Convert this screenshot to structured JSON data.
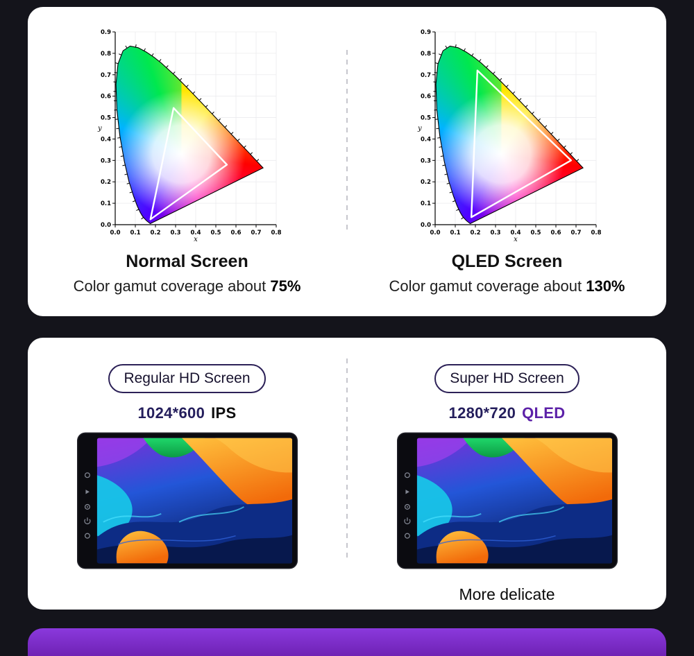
{
  "theme": {
    "page_bg": "#14141b",
    "card_bg": "#ffffff",
    "accent_purple": "#7d2fc6",
    "pill_border": "#2c2157",
    "qled_text_color": "#5c21a8",
    "divider_color": "#c6c6cd"
  },
  "gamut_section": {
    "left": {
      "title": "Normal Screen",
      "subtitle_prefix": "Color gamut coverage about ",
      "coverage": "75%"
    },
    "right": {
      "title": "QLED Screen",
      "subtitle_prefix": "Color gamut coverage about ",
      "coverage": "130%"
    }
  },
  "screen_section": {
    "left": {
      "badge": "Regular HD Screen",
      "resolution": "1024*600",
      "panel": "IPS"
    },
    "right": {
      "badge": "Super HD Screen",
      "resolution": "1280*720",
      "panel": "QLED",
      "caption": "More delicate"
    }
  },
  "chart_data": [
    {
      "type": "area",
      "subtype": "CIE 1931 xy chromaticity diagram",
      "title": "Normal Screen",
      "annotation": "Color gamut coverage about 75%",
      "coverage": "75%",
      "xlabel": "x",
      "ylabel": "y",
      "xlim": [
        0,
        0.8
      ],
      "ylim": [
        0,
        0.9
      ],
      "x_ticks": [
        0,
        0.1,
        0.2,
        0.3,
        0.4,
        0.5,
        0.6,
        0.7,
        0.8
      ],
      "y_ticks": [
        0,
        0.1,
        0.2,
        0.3,
        0.4,
        0.5,
        0.6,
        0.7,
        0.8,
        0.9
      ],
      "grid": true,
      "legend": "none",
      "spectral_locus": [
        [
          0.1741,
          0.005
        ],
        [
          0.1566,
          0.0177
        ],
        [
          0.144,
          0.0297
        ],
        [
          0.1355,
          0.0399
        ],
        [
          0.1241,
          0.0578
        ],
        [
          0.1096,
          0.0868
        ],
        [
          0.0913,
          0.1327
        ],
        [
          0.0687,
          0.2007
        ],
        [
          0.0454,
          0.295
        ],
        [
          0.0235,
          0.4127
        ],
        [
          0.0082,
          0.5384
        ],
        [
          0.0039,
          0.6548
        ],
        [
          0.0139,
          0.7502
        ],
        [
          0.0389,
          0.812
        ],
        [
          0.0743,
          0.8338
        ],
        [
          0.1142,
          0.8262
        ],
        [
          0.1547,
          0.8059
        ],
        [
          0.1929,
          0.7816
        ],
        [
          0.2296,
          0.7543
        ],
        [
          0.3016,
          0.6923
        ],
        [
          0.3731,
          0.6245
        ],
        [
          0.4441,
          0.5547
        ],
        [
          0.5125,
          0.4866
        ],
        [
          0.5752,
          0.4242
        ],
        [
          0.627,
          0.3725
        ],
        [
          0.6658,
          0.334
        ],
        [
          0.6915,
          0.3083
        ],
        [
          0.7079,
          0.292
        ],
        [
          0.719,
          0.2809
        ],
        [
          0.726,
          0.274
        ],
        [
          0.7347,
          0.2653
        ]
      ],
      "gamut_triangle": [
        [
          0.29,
          0.545
        ],
        [
          0.555,
          0.28
        ],
        [
          0.175,
          0.025
        ]
      ]
    },
    {
      "type": "area",
      "subtype": "CIE 1931 xy chromaticity diagram",
      "title": "QLED Screen",
      "annotation": "Color gamut coverage about 130%",
      "coverage": "130%",
      "xlabel": "x",
      "ylabel": "y",
      "xlim": [
        0,
        0.8
      ],
      "ylim": [
        0,
        0.9
      ],
      "x_ticks": [
        0,
        0.1,
        0.2,
        0.3,
        0.4,
        0.5,
        0.6,
        0.7,
        0.8
      ],
      "y_ticks": [
        0,
        0.1,
        0.2,
        0.3,
        0.4,
        0.5,
        0.6,
        0.7,
        0.8,
        0.9
      ],
      "grid": true,
      "legend": "none",
      "spectral_locus": [
        [
          0.1741,
          0.005
        ],
        [
          0.1566,
          0.0177
        ],
        [
          0.144,
          0.0297
        ],
        [
          0.1355,
          0.0399
        ],
        [
          0.1241,
          0.0578
        ],
        [
          0.1096,
          0.0868
        ],
        [
          0.0913,
          0.1327
        ],
        [
          0.0687,
          0.2007
        ],
        [
          0.0454,
          0.295
        ],
        [
          0.0235,
          0.4127
        ],
        [
          0.0082,
          0.5384
        ],
        [
          0.0039,
          0.6548
        ],
        [
          0.0139,
          0.7502
        ],
        [
          0.0389,
          0.812
        ],
        [
          0.0743,
          0.8338
        ],
        [
          0.1142,
          0.8262
        ],
        [
          0.1547,
          0.8059
        ],
        [
          0.1929,
          0.7816
        ],
        [
          0.2296,
          0.7543
        ],
        [
          0.3016,
          0.6923
        ],
        [
          0.3731,
          0.6245
        ],
        [
          0.4441,
          0.5547
        ],
        [
          0.5125,
          0.4866
        ],
        [
          0.5752,
          0.4242
        ],
        [
          0.627,
          0.3725
        ],
        [
          0.6658,
          0.334
        ],
        [
          0.6915,
          0.3083
        ],
        [
          0.7079,
          0.292
        ],
        [
          0.719,
          0.2809
        ],
        [
          0.726,
          0.274
        ],
        [
          0.7347,
          0.2653
        ]
      ],
      "gamut_triangle": [
        [
          0.21,
          0.72
        ],
        [
          0.675,
          0.3
        ],
        [
          0.18,
          0.035
        ]
      ]
    }
  ]
}
